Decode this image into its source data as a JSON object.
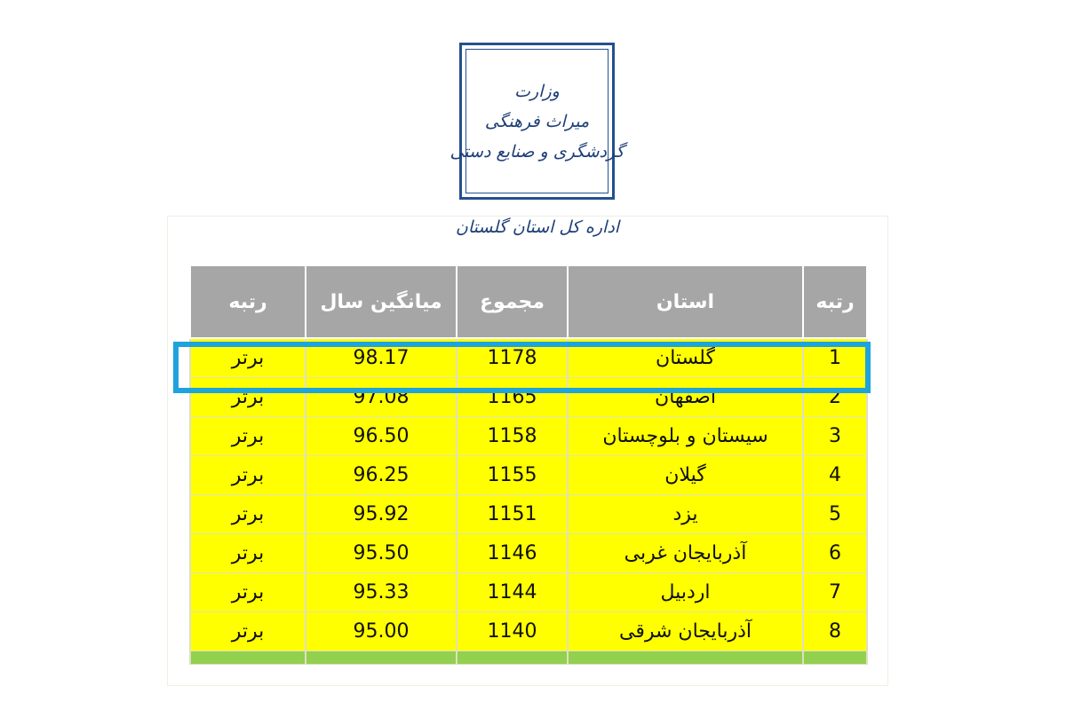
{
  "logo": {
    "lines": [
      "وزارت",
      "میراث فرهنگی",
      "گردشگری و صنایع دستی"
    ]
  },
  "subtitle": "اداره کل استان گلستان",
  "table": {
    "header": [
      "رتبه",
      "استان",
      "مجموع",
      "میانگین سال",
      "رتبه"
    ],
    "rows": [
      [
        "1",
        "گلستان",
        "1178",
        "98.17",
        "برتر"
      ],
      [
        "2",
        "اصفهان",
        "1165",
        "97.08",
        "برتر"
      ],
      [
        "3",
        "سیستان و بلوچستان",
        "1158",
        "96.50",
        "برتر"
      ],
      [
        "4",
        "گیلان",
        "1155",
        "96.25",
        "برتر"
      ],
      [
        "5",
        "یزد",
        "1151",
        "95.92",
        "برتر"
      ],
      [
        "6",
        "آذربایجان غربی",
        "1146",
        "95.50",
        "برتر"
      ],
      [
        "7",
        "اردبیل",
        "1144",
        "95.33",
        "برتر"
      ],
      [
        "8",
        "آذربایجان شرقی",
        "1140",
        "95.00",
        "برتر"
      ]
    ]
  }
}
